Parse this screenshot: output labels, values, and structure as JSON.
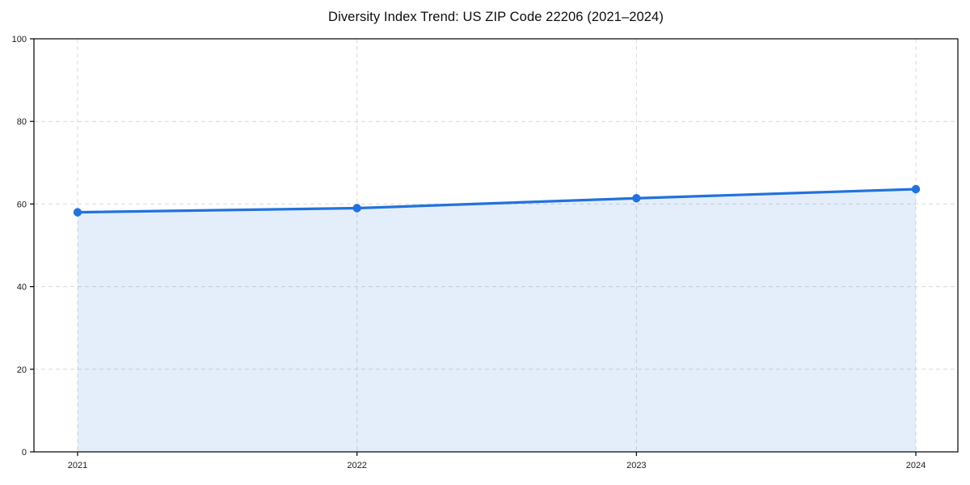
{
  "page": {
    "background": "#ffffff"
  },
  "chart_data": {
    "type": "line",
    "title": "Diversity Index Trend: US ZIP Code 22206 (2021–2024)",
    "categories": [
      "2021",
      "2022",
      "2023",
      "2024"
    ],
    "x": [
      2021,
      2022,
      2023,
      2024
    ],
    "series": [
      {
        "name": "Diversity Index",
        "values": [
          58.0,
          59.0,
          61.4,
          63.6
        ]
      }
    ],
    "xlabel": "",
    "ylabel": "",
    "ylim": [
      0,
      100
    ],
    "yticks": [
      0,
      20,
      40,
      60,
      80,
      100
    ],
    "grid": true,
    "grid_style": "dashed",
    "legend": "none",
    "marker": "circle",
    "area_fill": true,
    "colors": {
      "line": "#2272dd",
      "marker": "#2272dd",
      "fill": "rgba(34,114,221,0.12)",
      "grid": "#d9d9d9",
      "axis": "#000000",
      "tick_text": "#1a1a1a"
    }
  }
}
